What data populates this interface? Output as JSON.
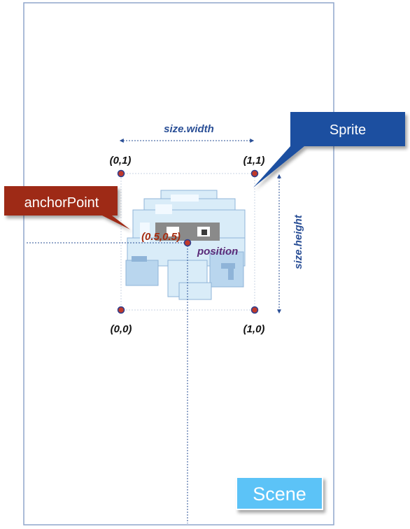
{
  "scene": {
    "label": "Scene",
    "colors": {
      "frame_border": "#8fa6cc",
      "badge_fill": "#5cc3f7",
      "badge_text": "#ffffff"
    }
  },
  "sprite": {
    "callout_label": "Sprite",
    "size_width_label": "size.width",
    "size_height_label": "size.height",
    "colors": {
      "callout_fill": "#1e50a0",
      "callout_text": "#ffffff",
      "dimension_text": "#2a4f96",
      "guide_line": "#b8c6dd"
    }
  },
  "anchor": {
    "callout_label": "anchorPoint",
    "value_label": "(0.5,0.5)",
    "position_label": "position",
    "colors": {
      "callout_fill": "#9e2a14",
      "callout_text": "#ffffff",
      "value_text": "#a62c10",
      "position_text": "#5a2a78"
    }
  },
  "corners": {
    "top_left": "(0,1)",
    "top_right": "(1,1)",
    "bottom_left": "(0,0)",
    "bottom_right": "(1,0)",
    "colors": {
      "dot_fill": "#c0392b",
      "dot_border": "#2c3e8f",
      "label_text": "#111111"
    }
  },
  "character": {
    "icon": "pixel-ghost-icon",
    "colors": {
      "body": "#d9ecf8",
      "shade": "#b9d6ee",
      "outline": "#8fb4d8",
      "highlight": "#f2f9ff",
      "mask": "#8a8a8a",
      "eye": "#ffffff"
    }
  }
}
